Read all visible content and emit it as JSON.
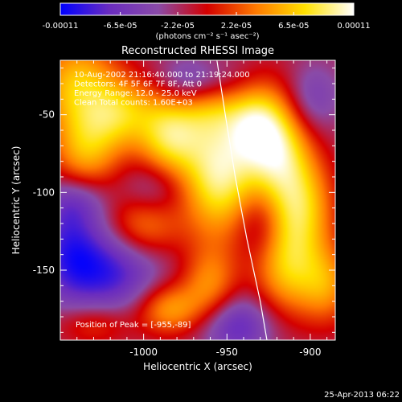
{
  "chart_data": {
    "type": "heatmap",
    "title": "Reconstructed RHESSI Image",
    "xlabel": "Heliocentric X (arcsec)",
    "ylabel": "Heliocentric Y (arcsec)",
    "xlim": [
      -1050,
      -885
    ],
    "ylim": [
      -195,
      -15
    ],
    "x_ticks": [
      -1000,
      -950,
      -900
    ],
    "y_ticks": [
      -50,
      -100,
      -150
    ],
    "colorbar": {
      "min": -0.00011,
      "max": 0.00011,
      "tick_values": [
        -0.00011,
        -6.5e-05,
        -2.2e-05,
        2.2e-05,
        6.5e-05,
        0.00011
      ],
      "tick_labels": [
        "-0.00011",
        "-6.5e-05",
        "-2.2e-05",
        "2.2e-05",
        "6.5e-05",
        "0.00011"
      ],
      "unit_label": "(photons cm⁻² s⁻¹ asec⁻²)",
      "colors": [
        "#0000ff",
        "#6a2cc0",
        "#8a4ba8",
        "#d40000",
        "#ff7a00",
        "#ffe100",
        "#ffffff"
      ]
    },
    "info_lines": [
      "10-Aug-2002 21:16:40.000 to 21:19:24.000",
      "Detectors: 4F 5F 6F 7F 8F, Att 0",
      "Energy Range: 12.0 - 25.0 keV",
      "Clean    Total counts: 1.60E+03"
    ],
    "peak_label": "Position of Peak = [-955,-89]",
    "peak": [
      -955,
      -89
    ],
    "limb_curve": [
      [
        -956,
        -15
      ],
      [
        -951,
        -50
      ],
      [
        -945,
        -90
      ],
      [
        -938,
        -130
      ],
      [
        -930,
        -170
      ],
      [
        -926,
        -195
      ]
    ],
    "sources": [
      [
        -1040,
        -30,
        8e-05,
        18,
        22
      ],
      [
        -1035,
        -75,
        7e-05,
        15,
        20
      ],
      [
        -1015,
        -50,
        6e-05,
        14,
        16
      ],
      [
        -990,
        -35,
        4e-05,
        16,
        14
      ],
      [
        -985,
        -65,
        9e-05,
        14,
        18
      ],
      [
        -955,
        -89,
        0.00011,
        16,
        28
      ],
      [
        -960,
        -40,
        6e-05,
        14,
        16
      ],
      [
        -935,
        -55,
        6e-05,
        12,
        18
      ],
      [
        -920,
        -70,
        0.0001,
        14,
        26
      ],
      [
        -905,
        -110,
        8e-05,
        14,
        24
      ],
      [
        -915,
        -150,
        7e-05,
        14,
        22
      ],
      [
        -890,
        -160,
        6e-05,
        12,
        18
      ],
      [
        -1000,
        -120,
        7e-05,
        16,
        16
      ],
      [
        -1020,
        -150,
        -7e-05,
        22,
        20
      ],
      [
        -1045,
        -135,
        -5e-05,
        14,
        24
      ],
      [
        -985,
        -175,
        7e-05,
        14,
        12
      ],
      [
        -1030,
        -185,
        4e-05,
        16,
        10
      ],
      [
        -960,
        -160,
        6e-05,
        12,
        18
      ],
      [
        -970,
        -30,
        -8e-05,
        20,
        12
      ],
      [
        -995,
        -100,
        -4e-05,
        14,
        14
      ],
      [
        -930,
        -120,
        -3e-05,
        10,
        16
      ],
      [
        -945,
        -185,
        -6e-05,
        16,
        14
      ],
      [
        -900,
        -40,
        -4e-05,
        12,
        16
      ],
      [
        -1040,
        -105,
        -4e-05,
        14,
        12
      ]
    ],
    "baseline": -2e-05
  },
  "footer": {
    "timestamp": "25-Apr-2013 06:22"
  }
}
